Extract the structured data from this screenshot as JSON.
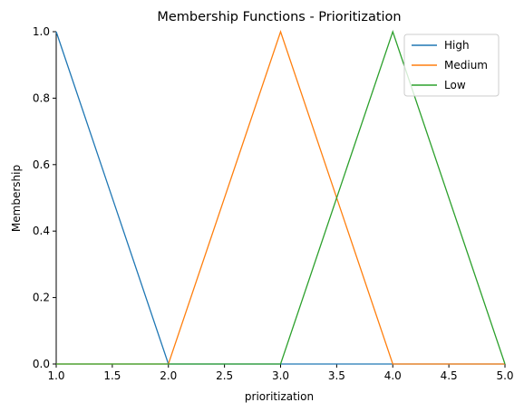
{
  "chart_data": {
    "type": "line",
    "title": "Membership Functions - Prioritization",
    "xlabel": "prioritization",
    "ylabel": "Membership",
    "xlim": [
      1.0,
      5.0
    ],
    "ylim": [
      0.0,
      1.0
    ],
    "x_ticks": [
      "1.0",
      "1.5",
      "2.0",
      "2.5",
      "3.0",
      "3.5",
      "4.0",
      "4.5",
      "5.0"
    ],
    "y_ticks": [
      "0.0",
      "0.2",
      "0.4",
      "0.6",
      "0.8",
      "1.0"
    ],
    "grid": false,
    "legend_position": "top-right",
    "series": [
      {
        "name": "High",
        "color": "#1f77b4",
        "x": [
          1,
          2,
          5
        ],
        "y": [
          1,
          0,
          0
        ]
      },
      {
        "name": "Medium",
        "color": "#ff7f0e",
        "x": [
          1,
          2,
          3,
          4,
          5
        ],
        "y": [
          0,
          0,
          1,
          0,
          0
        ]
      },
      {
        "name": "Low",
        "color": "#2ca02c",
        "x": [
          1,
          3,
          4,
          5
        ],
        "y": [
          0,
          0,
          1,
          0
        ]
      }
    ]
  }
}
